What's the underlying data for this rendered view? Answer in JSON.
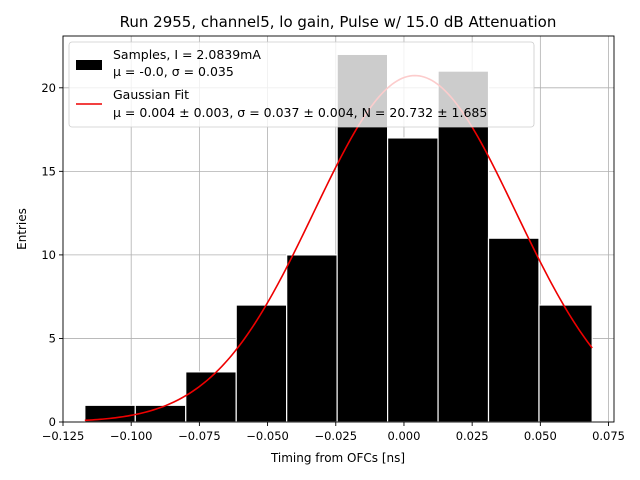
{
  "chart_data": {
    "type": "bar",
    "title": "Run 2955, channel5, lo gain, Pulse w/ 15.0 dB Attenuation",
    "xlabel": "Timing from OFCs [ns]",
    "ylabel": "Entries",
    "xlim": [
      -0.125,
      0.077
    ],
    "ylim": [
      0,
      23.1
    ],
    "xticks": [
      -0.125,
      -0.1,
      -0.075,
      -0.05,
      -0.025,
      0.0,
      0.025,
      0.05,
      0.075
    ],
    "xtick_labels": [
      "−0.125",
      "−0.100",
      "−0.075",
      "−0.050",
      "−0.025",
      "0.000",
      "0.025",
      "0.050",
      "0.075"
    ],
    "yticks": [
      0,
      5,
      10,
      15,
      20
    ],
    "ytick_labels": [
      "0",
      "5",
      "10",
      "15",
      "20"
    ],
    "grid": true,
    "legend_position": "top-left",
    "bins": [
      {
        "x0": -0.117,
        "x1": -0.0985,
        "count": 1
      },
      {
        "x0": -0.0985,
        "x1": -0.08,
        "count": 1
      },
      {
        "x0": -0.08,
        "x1": -0.0615,
        "count": 3
      },
      {
        "x0": -0.0615,
        "x1": -0.043,
        "count": 7
      },
      {
        "x0": -0.043,
        "x1": -0.0245,
        "count": 10
      },
      {
        "x0": -0.0245,
        "x1": -0.006,
        "count": 22
      },
      {
        "x0": -0.006,
        "x1": 0.0125,
        "count": 17
      },
      {
        "x0": 0.0125,
        "x1": 0.031,
        "count": 21
      },
      {
        "x0": 0.031,
        "x1": 0.0495,
        "count": 11
      },
      {
        "x0": 0.0495,
        "x1": 0.069,
        "count": 7
      }
    ],
    "fit": {
      "mu": 0.004,
      "sigma": 0.037,
      "N": 20.732,
      "x_range": [
        -0.117,
        0.069
      ]
    },
    "series": [
      {
        "name": "Samples, I = 2.0839mA",
        "stats": "μ = -0.0, σ = 0.035",
        "color": "#000000"
      },
      {
        "name": "Gaussian Fit",
        "stats": "μ = 0.004 ± 0.003, σ = 0.037 ± 0.004, N = 20.732 ± 1.685",
        "color": "#ee0000"
      }
    ]
  }
}
